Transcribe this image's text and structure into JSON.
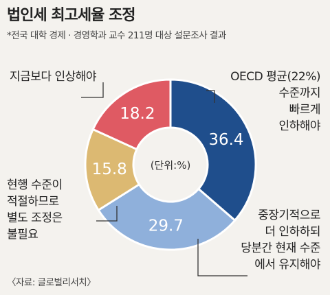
{
  "chart_data": {
    "type": "pie",
    "title": "법인세 최고세율 조정",
    "subtitle": "*전국 대학 경제 · 경영학과 교수 211명 대상 설문조사 결과",
    "center_label": "(단위:%)",
    "source": "〈자료: 글로벌리서치〉",
    "slices": [
      {
        "value": 36.4,
        "label": "36.4",
        "color": "#1f4e8c",
        "annotation": [
          "OECD 평균(22%)",
          "수준까지",
          "빠르게",
          "인하해야"
        ]
      },
      {
        "value": 29.7,
        "label": "29.7",
        "color": "#8fb0db",
        "annotation": [
          "중장기적으로",
          "더 인하하되",
          "당분간 현재 수준",
          "에서 유지해야"
        ]
      },
      {
        "value": 15.8,
        "label": "15.8",
        "color": "#dcb972",
        "annotation": [
          "현행 수준이",
          "적절하므로",
          "별도 조정은",
          "불필요"
        ]
      },
      {
        "value": 18.2,
        "label": "18.2",
        "color": "#df5a63",
        "annotation": [
          "지금보다 인상해야"
        ]
      }
    ]
  }
}
